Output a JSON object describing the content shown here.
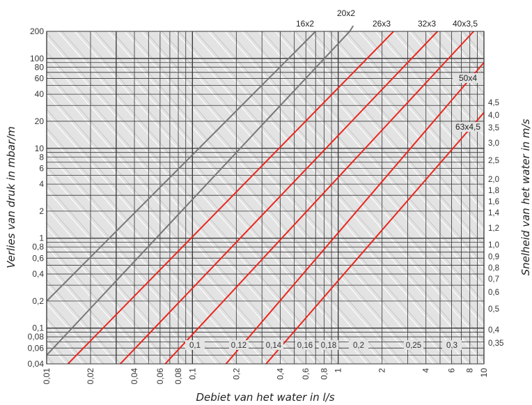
{
  "chart_data": {
    "type": "line",
    "x_scale": "log",
    "y_scale": "log",
    "xlim": [
      0.01,
      10
    ],
    "ylim": [
      0.04,
      200
    ],
    "xlabel": "Debiet van het water in l/s",
    "ylabel": "Verlies van druk in mbar/m",
    "y2label": "Snelheid van het water in m/s",
    "grid": true,
    "x_ticks": [
      "0,01",
      "0,02",
      "0,04",
      "0,06",
      "0,08",
      "0,1",
      "0,2",
      "0,4",
      "0,6",
      "0,8",
      "1",
      "2",
      "4",
      "6",
      "8",
      "10"
    ],
    "y_ticks": [
      "200",
      "100",
      "80",
      "60",
      "40",
      "20",
      "10",
      "8",
      "6",
      "4",
      "2",
      "1",
      "0,8",
      "0,6",
      "0,4",
      "0,2",
      "0,1",
      "0,08",
      "0,06",
      "0,04"
    ],
    "velocity_ticks": [
      "4,5",
      "4,0",
      "3,5",
      "3,0",
      "2,5",
      "2,0",
      "1,8",
      "1,6",
      "1,4",
      "1,2",
      "1,0",
      "0,9",
      "0,8",
      "0,7",
      "0,6",
      "0,5",
      "0,4",
      "0,35"
    ],
    "velocity_inner_labels": [
      "0,1",
      "0,12",
      "0,14",
      "0,16",
      "0,18",
      "0,2",
      "0,25",
      "0,3"
    ],
    "series": [
      {
        "name": "16x2",
        "color": "#777777",
        "points": [
          [
            0.01,
            0.2
          ],
          [
            0.7,
            200
          ]
        ]
      },
      {
        "name": "20x2",
        "color": "#777777",
        "points": [
          [
            0.01,
            0.05
          ],
          [
            1.2,
            200
          ]
        ]
      },
      {
        "name": "26x3",
        "color": "#e8281e",
        "points": [
          [
            0.014,
            0.04
          ],
          [
            2.4,
            200
          ]
        ]
      },
      {
        "name": "32x3",
        "color": "#e8281e",
        "points": [
          [
            0.032,
            0.04
          ],
          [
            4.8,
            200
          ]
        ]
      },
      {
        "name": "40x3,5",
        "color": "#e8281e",
        "points": [
          [
            0.065,
            0.04
          ],
          [
            8.5,
            200
          ]
        ]
      },
      {
        "name": "50x4",
        "color": "#e8281e",
        "points": [
          [
            0.17,
            0.04
          ],
          [
            10,
            90
          ]
        ]
      },
      {
        "name": "63x4,5",
        "color": "#e8281e",
        "points": [
          [
            0.32,
            0.04
          ],
          [
            10,
            25
          ]
        ]
      }
    ],
    "colors": {
      "background": "#e3e3e3",
      "grid": "#333333",
      "velocity_lines": "#ffffff"
    }
  }
}
